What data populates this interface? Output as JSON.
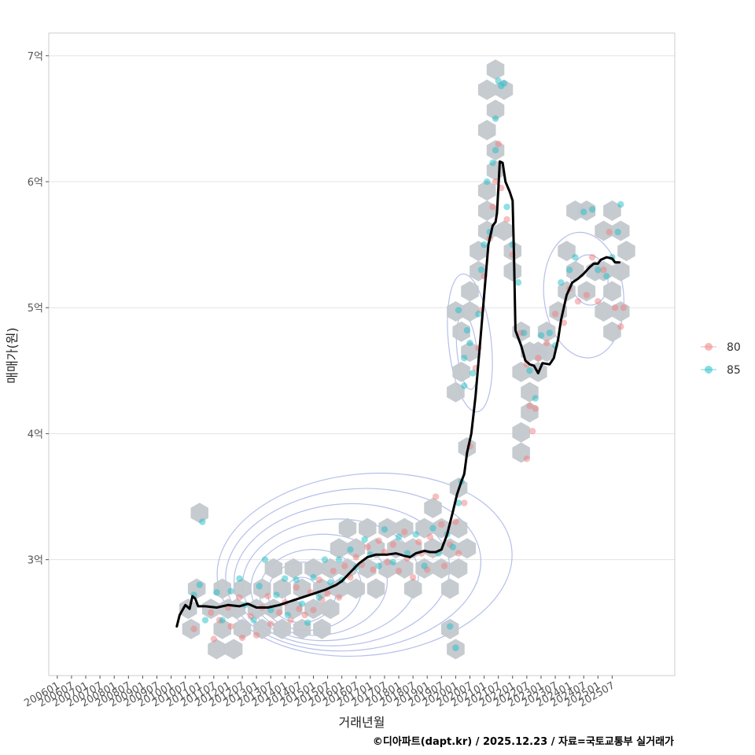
{
  "chart_data": {
    "type": "scatter",
    "xlabel": "거래년월",
    "ylabel": "매매가(원)",
    "caption": "©디아파트(dapt.kr) / 2025.12.23 / 자료=국토교통부 실거래가",
    "x_ticks": [
      "200601",
      "200607",
      "200701",
      "200707",
      "200801",
      "200807",
      "200901",
      "200907",
      "201001",
      "201007",
      "201101",
      "201107",
      "201201",
      "201207",
      "201301",
      "201307",
      "201401",
      "201407",
      "201501",
      "201507",
      "201601",
      "201607",
      "201701",
      "201707",
      "201801",
      "201807",
      "201901",
      "201907",
      "202001",
      "202007",
      "202101",
      "202107",
      "202201",
      "202207",
      "202301",
      "202307",
      "202401",
      "202407",
      "202501",
      "202507"
    ],
    "y_ticks": [
      {
        "value": 3,
        "label": "3억"
      },
      {
        "value": 4,
        "label": "4억"
      },
      {
        "value": 5,
        "label": "5억"
      },
      {
        "value": 6,
        "label": "6억"
      },
      {
        "value": 7,
        "label": "7억"
      }
    ],
    "xlim": [
      2005.7,
      2027.7
    ],
    "ylim": [
      2.08,
      7.18
    ],
    "legend": {
      "position": "right",
      "items": [
        {
          "label": "80",
          "color": "#F08080"
        },
        {
          "label": "85",
          "color": "#20C0C8"
        }
      ]
    },
    "colors": {
      "hex": "#C3C8CE",
      "contour": "#A8B4E6",
      "trend": "#000000",
      "grid": "#E3E3E3",
      "panel_border": "#CCCCCC"
    },
    "trend_line": [
      [
        2010.2,
        2.47
      ],
      [
        2010.3,
        2.56
      ],
      [
        2010.5,
        2.64
      ],
      [
        2010.65,
        2.61
      ],
      [
        2010.75,
        2.71
      ],
      [
        2010.85,
        2.69
      ],
      [
        2010.95,
        2.63
      ],
      [
        2011.2,
        2.63
      ],
      [
        2011.6,
        2.62
      ],
      [
        2012.0,
        2.64
      ],
      [
        2012.4,
        2.63
      ],
      [
        2012.7,
        2.65
      ],
      [
        2013.0,
        2.62
      ],
      [
        2013.4,
        2.62
      ],
      [
        2013.8,
        2.64
      ],
      [
        2014.2,
        2.67
      ],
      [
        2014.6,
        2.7
      ],
      [
        2015.0,
        2.73
      ],
      [
        2015.4,
        2.76
      ],
      [
        2015.8,
        2.8
      ],
      [
        2016.0,
        2.83
      ],
      [
        2016.3,
        2.9
      ],
      [
        2016.6,
        2.97
      ],
      [
        2016.9,
        3.02
      ],
      [
        2017.2,
        3.04
      ],
      [
        2017.6,
        3.04
      ],
      [
        2017.9,
        3.05
      ],
      [
        2018.2,
        3.03
      ],
      [
        2018.4,
        3.02
      ],
      [
        2018.6,
        3.05
      ],
      [
        2018.9,
        3.07
      ],
      [
        2019.1,
        3.06
      ],
      [
        2019.3,
        3.06
      ],
      [
        2019.5,
        3.08
      ],
      [
        2019.7,
        3.2
      ],
      [
        2019.9,
        3.38
      ],
      [
        2020.05,
        3.52
      ],
      [
        2020.2,
        3.62
      ],
      [
        2020.3,
        3.68
      ],
      [
        2020.4,
        3.85
      ],
      [
        2020.55,
        4.0
      ],
      [
        2020.7,
        4.3
      ],
      [
        2020.85,
        4.7
      ],
      [
        2021.0,
        5.1
      ],
      [
        2021.15,
        5.5
      ],
      [
        2021.3,
        5.65
      ],
      [
        2021.4,
        5.68
      ],
      [
        2021.45,
        5.75
      ],
      [
        2021.5,
        5.95
      ],
      [
        2021.55,
        6.16
      ],
      [
        2021.65,
        6.15
      ],
      [
        2021.75,
        6.0
      ],
      [
        2021.9,
        5.92
      ],
      [
        2022.0,
        5.85
      ],
      [
        2022.05,
        5.4
      ],
      [
        2022.1,
        4.82
      ],
      [
        2022.3,
        4.7
      ],
      [
        2022.45,
        4.58
      ],
      [
        2022.6,
        4.55
      ],
      [
        2022.75,
        4.54
      ],
      [
        2022.9,
        4.48
      ],
      [
        2023.05,
        4.56
      ],
      [
        2023.3,
        4.55
      ],
      [
        2023.45,
        4.6
      ],
      [
        2023.6,
        4.75
      ],
      [
        2023.7,
        4.9
      ],
      [
        2023.9,
        5.1
      ],
      [
        2024.1,
        5.2
      ],
      [
        2024.3,
        5.23
      ],
      [
        2024.5,
        5.27
      ],
      [
        2024.7,
        5.32
      ],
      [
        2024.85,
        5.35
      ],
      [
        2025.0,
        5.35
      ],
      [
        2025.1,
        5.38
      ],
      [
        2025.3,
        5.4
      ],
      [
        2025.5,
        5.39
      ],
      [
        2025.6,
        5.36
      ],
      [
        2025.75,
        5.36
      ]
    ],
    "hex_bins": [
      [
        2011.0,
        3.37
      ],
      [
        2010.6,
        2.61
      ],
      [
        2010.9,
        2.77
      ],
      [
        2010.7,
        2.45
      ],
      [
        2011.4,
        2.61
      ],
      [
        2011.8,
        2.45
      ],
      [
        2011.8,
        2.77
      ],
      [
        2011.6,
        2.29
      ],
      [
        2012.2,
        2.29
      ],
      [
        2012.0,
        2.61
      ],
      [
        2012.5,
        2.45
      ],
      [
        2012.5,
        2.77
      ],
      [
        2012.3,
        2.61
      ],
      [
        2013.0,
        2.61
      ],
      [
        2013.2,
        2.77
      ],
      [
        2013.2,
        2.45
      ],
      [
        2013.6,
        2.61
      ],
      [
        2013.6,
        2.93
      ],
      [
        2013.9,
        2.77
      ],
      [
        2013.9,
        2.45
      ],
      [
        2014.3,
        2.61
      ],
      [
        2014.3,
        2.93
      ],
      [
        2014.6,
        2.77
      ],
      [
        2014.6,
        2.45
      ],
      [
        2015.0,
        2.61
      ],
      [
        2015.0,
        2.93
      ],
      [
        2015.3,
        2.77
      ],
      [
        2015.3,
        2.45
      ],
      [
        2015.6,
        2.61
      ],
      [
        2015.6,
        2.93
      ],
      [
        2015.9,
        2.77
      ],
      [
        2015.9,
        3.09
      ],
      [
        2016.2,
        2.93
      ],
      [
        2016.2,
        3.25
      ],
      [
        2016.5,
        3.09
      ],
      [
        2016.5,
        2.77
      ],
      [
        2016.9,
        2.93
      ],
      [
        2016.9,
        3.25
      ],
      [
        2017.2,
        3.09
      ],
      [
        2017.2,
        2.77
      ],
      [
        2017.6,
        2.93
      ],
      [
        2017.6,
        3.25
      ],
      [
        2017.9,
        3.09
      ],
      [
        2018.2,
        2.93
      ],
      [
        2018.2,
        3.25
      ],
      [
        2018.5,
        3.09
      ],
      [
        2018.5,
        2.77
      ],
      [
        2018.9,
        2.93
      ],
      [
        2018.9,
        3.25
      ],
      [
        2019.2,
        3.09
      ],
      [
        2019.2,
        3.41
      ],
      [
        2019.5,
        2.93
      ],
      [
        2019.5,
        3.25
      ],
      [
        2019.8,
        3.09
      ],
      [
        2019.8,
        2.77
      ],
      [
        2020.1,
        2.93
      ],
      [
        2020.1,
        3.25
      ],
      [
        2020.1,
        3.57
      ],
      [
        2020.4,
        3.09
      ],
      [
        2020.4,
        3.89
      ],
      [
        2019.8,
        2.45
      ],
      [
        2020.0,
        2.29
      ],
      [
        2020.0,
        4.97
      ],
      [
        2020.2,
        4.81
      ],
      [
        2020.2,
        4.49
      ],
      [
        2020.0,
        4.33
      ],
      [
        2020.5,
        4.65
      ],
      [
        2020.5,
        4.97
      ],
      [
        2020.5,
        5.13
      ],
      [
        2020.8,
        5.29
      ],
      [
        2020.8,
        5.45
      ],
      [
        2021.1,
        5.61
      ],
      [
        2021.1,
        5.77
      ],
      [
        2021.1,
        5.93
      ],
      [
        2021.4,
        6.09
      ],
      [
        2021.4,
        6.25
      ],
      [
        2021.1,
        6.41
      ],
      [
        2021.4,
        6.57
      ],
      [
        2021.1,
        6.73
      ],
      [
        2021.4,
        6.89
      ],
      [
        2021.7,
        6.73
      ],
      [
        2021.7,
        5.61
      ],
      [
        2022.0,
        5.45
      ],
      [
        2022.0,
        5.29
      ],
      [
        2022.3,
        4.81
      ],
      [
        2022.6,
        4.65
      ],
      [
        2022.3,
        4.49
      ],
      [
        2022.6,
        4.33
      ],
      [
        2022.6,
        4.17
      ],
      [
        2022.3,
        4.01
      ],
      [
        2022.3,
        3.85
      ],
      [
        2022.9,
        4.65
      ],
      [
        2022.9,
        4.49
      ],
      [
        2023.2,
        4.81
      ],
      [
        2023.2,
        4.65
      ],
      [
        2023.6,
        4.97
      ],
      [
        2023.9,
        5.13
      ],
      [
        2023.9,
        5.45
      ],
      [
        2024.2,
        5.29
      ],
      [
        2024.6,
        5.13
      ],
      [
        2024.9,
        5.29
      ],
      [
        2025.2,
        5.29
      ],
      [
        2025.5,
        5.13
      ],
      [
        2025.2,
        4.97
      ],
      [
        2025.5,
        4.81
      ],
      [
        2025.8,
        4.97
      ],
      [
        2024.6,
        5.77
      ],
      [
        2024.2,
        5.77
      ],
      [
        2025.2,
        5.61
      ],
      [
        2025.5,
        5.77
      ],
      [
        2025.8,
        5.61
      ],
      [
        2026.0,
        5.45
      ],
      [
        2025.8,
        5.29
      ]
    ],
    "points_80": [
      [
        2010.8,
        2.45
      ],
      [
        2011.4,
        2.58
      ],
      [
        2011.5,
        2.37
      ],
      [
        2011.7,
        2.52
      ],
      [
        2012.0,
        2.62
      ],
      [
        2012.1,
        2.47
      ],
      [
        2012.4,
        2.7
      ],
      [
        2012.5,
        2.38
      ],
      [
        2012.8,
        2.55
      ],
      [
        2013.0,
        2.4
      ],
      [
        2013.2,
        2.62
      ],
      [
        2013.4,
        2.71
      ],
      [
        2013.5,
        2.49
      ],
      [
        2013.8,
        2.58
      ],
      [
        2014.0,
        2.66
      ],
      [
        2014.2,
        2.52
      ],
      [
        2014.4,
        2.78
      ],
      [
        2014.5,
        2.61
      ],
      [
        2014.7,
        2.56
      ],
      [
        2014.9,
        2.74
      ],
      [
        2015.0,
        2.6
      ],
      [
        2015.2,
        2.84
      ],
      [
        2015.3,
        2.68
      ],
      [
        2015.5,
        2.73
      ],
      [
        2015.7,
        2.91
      ],
      [
        2015.9,
        2.7
      ],
      [
        2016.1,
        2.95
      ],
      [
        2016.3,
        2.86
      ],
      [
        2016.5,
        3.02
      ],
      [
        2016.7,
        2.96
      ],
      [
        2016.9,
        3.1
      ],
      [
        2017.1,
        2.92
      ],
      [
        2017.3,
        3.15
      ],
      [
        2017.5,
        3.06
      ],
      [
        2017.6,
        2.98
      ],
      [
        2017.8,
        3.12
      ],
      [
        2018.0,
        2.91
      ],
      [
        2018.2,
        3.22
      ],
      [
        2018.3,
        3.01
      ],
      [
        2018.5,
        2.86
      ],
      [
        2018.7,
        3.14
      ],
      [
        2018.8,
        3.05
      ],
      [
        2019.0,
        2.92
      ],
      [
        2019.1,
        3.18
      ],
      [
        2019.3,
        3.5
      ],
      [
        2019.5,
        3.28
      ],
      [
        2019.6,
        2.95
      ],
      [
        2019.8,
        3.12
      ],
      [
        2020.0,
        3.3
      ],
      [
        2020.1,
        3.05
      ],
      [
        2020.3,
        3.45
      ],
      [
        2020.5,
        3.9
      ],
      [
        2020.7,
        4.52
      ],
      [
        2020.8,
        4.68
      ],
      [
        2020.9,
        4.98
      ],
      [
        2021.0,
        5.25
      ],
      [
        2021.2,
        5.55
      ],
      [
        2021.3,
        5.8
      ],
      [
        2021.4,
        6.0
      ],
      [
        2021.5,
        6.3
      ],
      [
        2021.6,
        5.95
      ],
      [
        2021.8,
        5.7
      ],
      [
        2022.0,
        5.42
      ],
      [
        2022.3,
        4.8
      ],
      [
        2022.5,
        4.55
      ],
      [
        2022.6,
        4.22
      ],
      [
        2022.7,
        4.02
      ],
      [
        2022.8,
        4.2
      ],
      [
        2022.5,
        3.8
      ],
      [
        2022.9,
        4.6
      ],
      [
        2023.2,
        4.72
      ],
      [
        2023.5,
        4.95
      ],
      [
        2023.8,
        4.88
      ],
      [
        2024.0,
        5.15
      ],
      [
        2024.3,
        5.05
      ],
      [
        2024.6,
        5.1
      ],
      [
        2024.8,
        5.4
      ],
      [
        2025.0,
        5.05
      ],
      [
        2025.2,
        5.3
      ],
      [
        2025.4,
        5.6
      ],
      [
        2025.6,
        5.0
      ],
      [
        2025.8,
        4.85
      ],
      [
        2025.9,
        5.0
      ]
    ],
    "points_85": [
      [
        2011.1,
        3.3
      ],
      [
        2010.8,
        2.72
      ],
      [
        2011.0,
        2.8
      ],
      [
        2011.2,
        2.52
      ],
      [
        2011.6,
        2.74
      ],
      [
        2011.8,
        2.52
      ],
      [
        2012.1,
        2.75
      ],
      [
        2012.4,
        2.85
      ],
      [
        2012.6,
        2.64
      ],
      [
        2012.9,
        2.52
      ],
      [
        2013.1,
        2.79
      ],
      [
        2013.3,
        3.0
      ],
      [
        2013.5,
        2.6
      ],
      [
        2013.7,
        2.72
      ],
      [
        2014.0,
        2.85
      ],
      [
        2014.1,
        2.56
      ],
      [
        2014.4,
        2.84
      ],
      [
        2014.6,
        2.65
      ],
      [
        2014.8,
        2.5
      ],
      [
        2015.0,
        2.86
      ],
      [
        2015.2,
        2.7
      ],
      [
        2015.4,
        3.0
      ],
      [
        2015.6,
        2.82
      ],
      [
        2015.9,
        3.0
      ],
      [
        2016.0,
        2.84
      ],
      [
        2016.3,
        3.08
      ],
      [
        2016.5,
        2.94
      ],
      [
        2016.8,
        3.16
      ],
      [
        2017.0,
        3.04
      ],
      [
        2017.3,
        2.95
      ],
      [
        2017.5,
        3.24
      ],
      [
        2017.8,
        2.98
      ],
      [
        2018.0,
        3.18
      ],
      [
        2018.3,
        3.05
      ],
      [
        2018.6,
        3.2
      ],
      [
        2018.9,
        2.95
      ],
      [
        2019.2,
        3.25
      ],
      [
        2019.4,
        3.05
      ],
      [
        2019.7,
        3.2
      ],
      [
        2019.9,
        3.1
      ],
      [
        2020.1,
        3.45
      ],
      [
        2020.2,
        3.62
      ],
      [
        2019.8,
        2.47
      ],
      [
        2020.0,
        2.3
      ],
      [
        2020.1,
        4.98
      ],
      [
        2020.3,
        4.6
      ],
      [
        2020.4,
        4.82
      ],
      [
        2020.5,
        4.72
      ],
      [
        2020.6,
        4.48
      ],
      [
        2020.3,
        4.38
      ],
      [
        2020.8,
        4.95
      ],
      [
        2020.9,
        5.3
      ],
      [
        2021.0,
        5.5
      ],
      [
        2021.2,
        5.6
      ],
      [
        2021.3,
        6.15
      ],
      [
        2021.4,
        6.5
      ],
      [
        2021.5,
        6.8
      ],
      [
        2021.6,
        6.76
      ],
      [
        2021.7,
        6.78
      ],
      [
        2021.1,
        6.0
      ],
      [
        2021.4,
        6.25
      ],
      [
        2021.8,
        5.8
      ],
      [
        2022.0,
        5.5
      ],
      [
        2022.2,
        5.2
      ],
      [
        2022.4,
        4.8
      ],
      [
        2022.6,
        4.5
      ],
      [
        2022.8,
        4.28
      ],
      [
        2023.0,
        4.78
      ],
      [
        2023.3,
        4.8
      ],
      [
        2023.5,
        4.7
      ],
      [
        2023.7,
        5.2
      ],
      [
        2024.0,
        5.3
      ],
      [
        2024.2,
        5.4
      ],
      [
        2024.5,
        5.76
      ],
      [
        2024.8,
        5.78
      ],
      [
        2025.0,
        5.3
      ],
      [
        2025.3,
        5.25
      ],
      [
        2025.5,
        5.4
      ],
      [
        2025.7,
        5.6
      ],
      [
        2025.8,
        5.82
      ]
    ],
    "density_contours": [
      {
        "cx": 2014.6,
        "cy": 2.72,
        "rx": 0.6,
        "ry": 0.14
      },
      {
        "cx": 2014.6,
        "cy": 2.74,
        "rx": 1.2,
        "ry": 0.24
      },
      {
        "cx": 2014.9,
        "cy": 2.76,
        "rx": 1.8,
        "ry": 0.32
      },
      {
        "cx": 2015.2,
        "cy": 2.8,
        "rx": 2.4,
        "ry": 0.4
      },
      {
        "cx": 2015.6,
        "cy": 2.84,
        "rx": 3.1,
        "ry": 0.48
      },
      {
        "cx": 2016.0,
        "cy": 2.88,
        "rx": 3.8,
        "ry": 0.56
      },
      {
        "cx": 2016.4,
        "cy": 2.92,
        "rx": 4.5,
        "ry": 0.64
      },
      {
        "cx": 2016.8,
        "cy": 2.96,
        "rx": 5.2,
        "ry": 0.72
      },
      {
        "cx": 2020.4,
        "cy": 4.65,
        "rx": 0.35,
        "ry": 0.3
      },
      {
        "cx": 2020.5,
        "cy": 4.72,
        "rx": 0.75,
        "ry": 0.55
      },
      {
        "cx": 2024.7,
        "cy": 5.22,
        "rx": 0.65,
        "ry": 0.2
      },
      {
        "cx": 2024.5,
        "cy": 5.1,
        "rx": 1.4,
        "ry": 0.5
      }
    ]
  }
}
